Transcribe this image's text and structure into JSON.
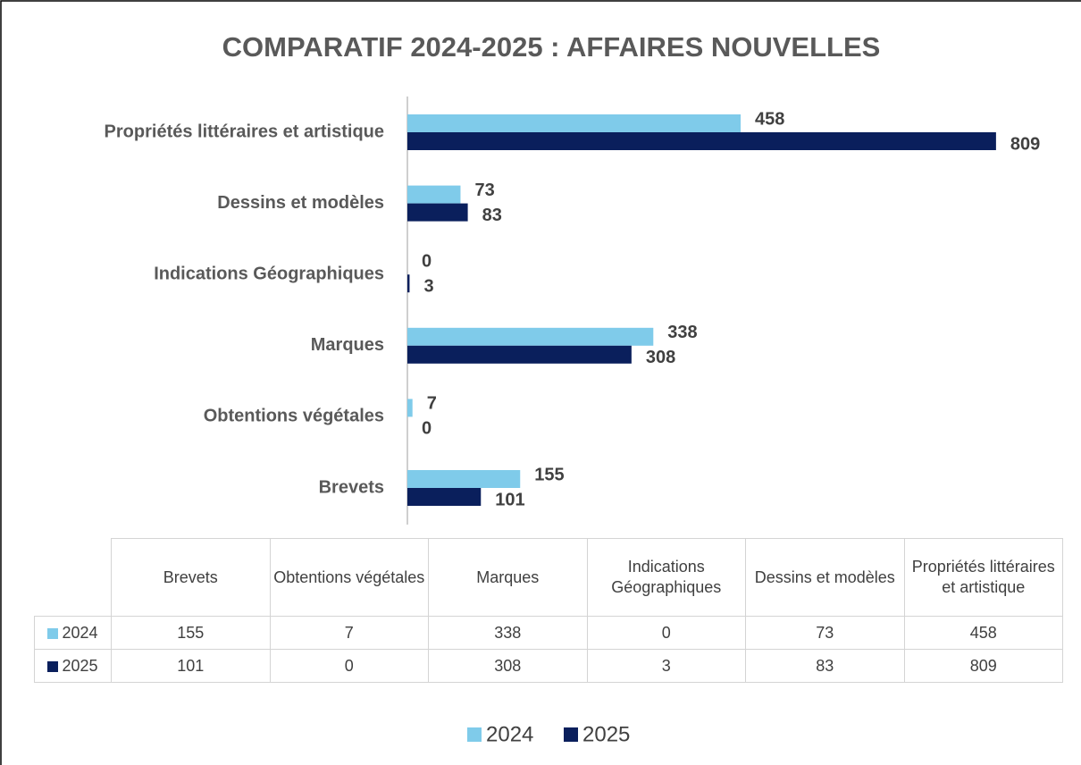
{
  "chart_data": {
    "type": "barh",
    "title": "COMPARATIF 2024-2025 : AFFAIRES NOUVELLES",
    "categories": [
      "Brevets",
      "Obtentions végétales",
      "Marques",
      "Indications Géographiques",
      "Dessins et modèles",
      "Propriétés littéraires et artistique"
    ],
    "series": [
      {
        "name": "2024",
        "color": "#7fcbea",
        "values": [
          155,
          7,
          338,
          0,
          73,
          458
        ]
      },
      {
        "name": "2025",
        "color": "#0a1f5c",
        "values": [
          101,
          0,
          308,
          3,
          83,
          809
        ]
      }
    ],
    "xlim": [
      0,
      900
    ],
    "legend": "bottom"
  }
}
